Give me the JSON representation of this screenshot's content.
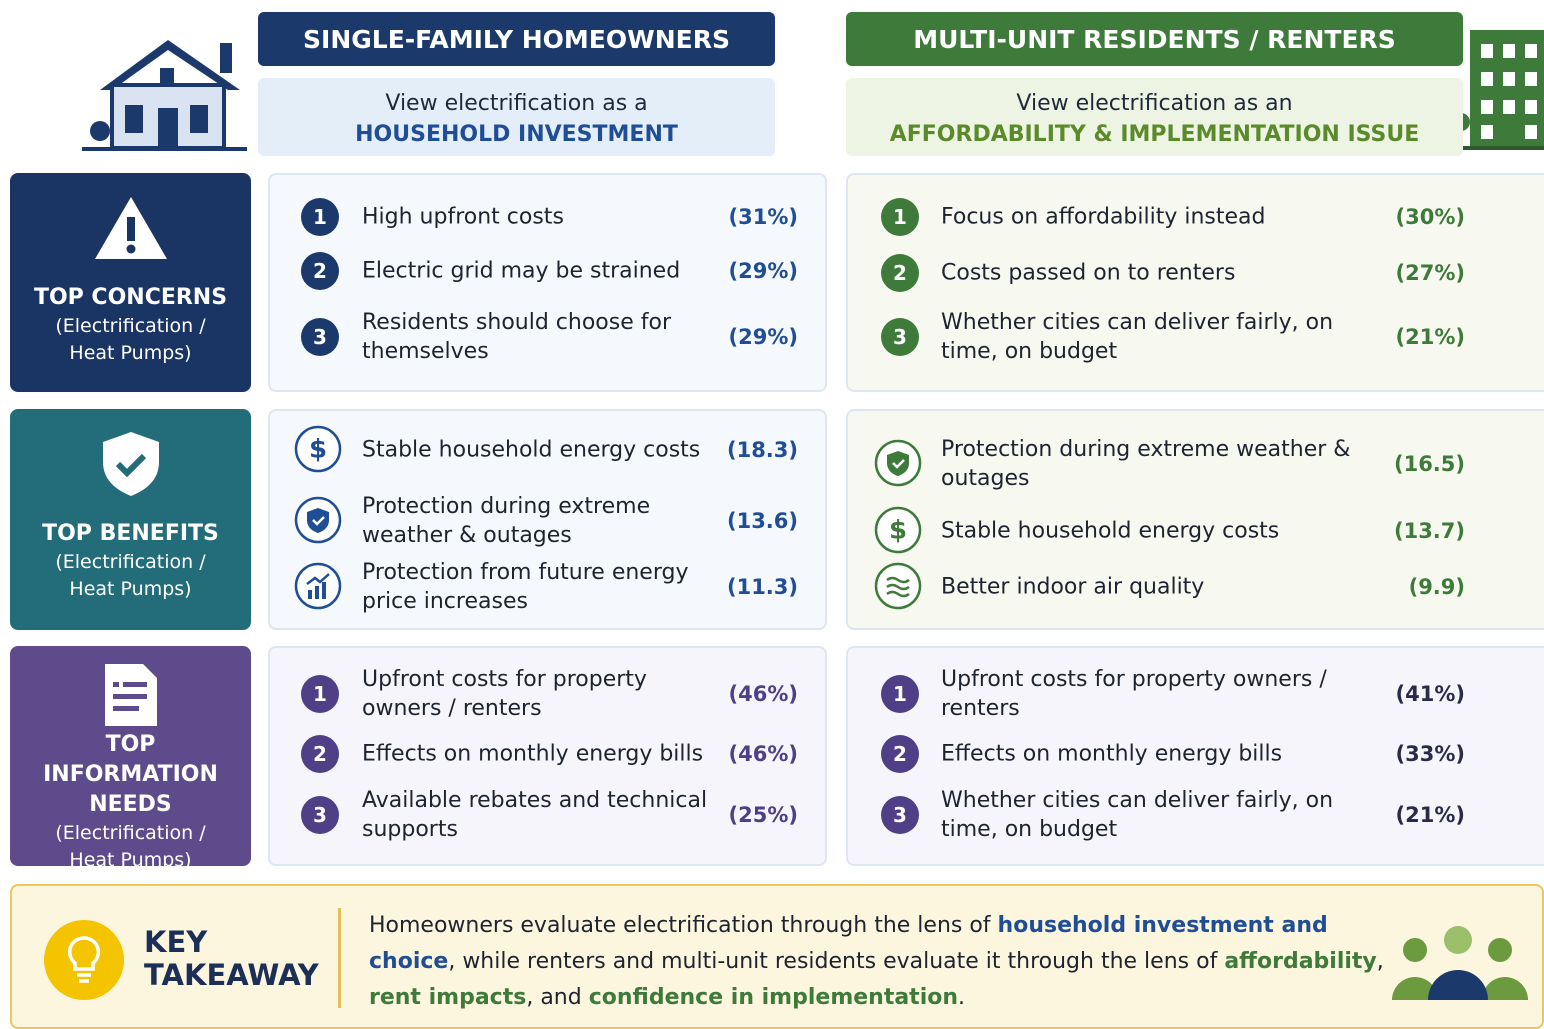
{
  "columns": [
    {
      "title": "SINGLE-FAMILY HOMEOWNERS",
      "view_line": "View electrification as a",
      "view_emphasis": "HOUSEHOLD INVESTMENT"
    },
    {
      "title": "MULTI-UNIT RESIDENTS / RENTERS",
      "view_line": "View electrification as an",
      "view_emphasis": "AFFORDABILITY & IMPLEMENTATION ISSUE"
    }
  ],
  "sections": [
    {
      "title": "TOP CONCERNS",
      "subtitle": "(Electrification / Heat Pumps)",
      "columns": [
        {
          "items": [
            {
              "marker": "1",
              "text": "High upfront costs",
              "value": "(31%)"
            },
            {
              "marker": "2",
              "text": "Electric grid may be strained",
              "value": "(29%)"
            },
            {
              "marker": "3",
              "text": "Residents should choose for themselves",
              "value": "(29%)"
            }
          ]
        },
        {
          "items": [
            {
              "marker": "1",
              "text": "Focus on affordability instead",
              "value": "(30%)"
            },
            {
              "marker": "2",
              "text": "Costs passed on to renters",
              "value": "(27%)"
            },
            {
              "marker": "3",
              "text": "Whether cities can deliver fairly, on time, on budget",
              "value": "(21%)"
            }
          ]
        }
      ]
    },
    {
      "title": "TOP BENEFITS",
      "subtitle": "(Electrification / Heat Pumps)",
      "columns": [
        {
          "items": [
            {
              "text": "Stable household energy costs",
              "value": "(18.3)"
            },
            {
              "text": "Protection during extreme weather & outages",
              "value": "(13.6)"
            },
            {
              "text": "Protection from future energy price increases",
              "value": "(11.3)"
            }
          ]
        },
        {
          "items": [
            {
              "text": "Protection during extreme weather & outages",
              "value": "(16.5)"
            },
            {
              "text": "Stable household energy costs",
              "value": "(13.7)"
            },
            {
              "text": "Better indoor air quality",
              "value": "(9.9)"
            }
          ]
        }
      ]
    },
    {
      "title": "TOP INFORMATION NEEDS",
      "subtitle": "(Electrification / Heat Pumps)",
      "columns": [
        {
          "items": [
            {
              "marker": "1",
              "text": "Upfront costs for property owners / renters",
              "value": "(46%)"
            },
            {
              "marker": "2",
              "text": "Effects on monthly energy bills",
              "value": "(46%)"
            },
            {
              "marker": "3",
              "text": "Available rebates and technical supports",
              "value": "(25%)"
            }
          ]
        },
        {
          "items": [
            {
              "marker": "1",
              "text": "Upfront costs for property owners / renters",
              "value": "(41%)"
            },
            {
              "marker": "2",
              "text": "Effects on monthly energy bills",
              "value": "(33%)"
            },
            {
              "marker": "3",
              "text": "Whether cities can deliver fairly, on time, on budget",
              "value": "(21%)"
            }
          ]
        }
      ]
    }
  ],
  "takeaway": {
    "title": "KEY TAKEAWAY",
    "segments": [
      {
        "text": "Homeowners evaluate electrification through the lens of "
      },
      {
        "text": "household investment and choice",
        "color": "#1f4e96"
      },
      {
        "text": ", while renters and multi-unit residents evaluate it through the lens of "
      },
      {
        "text": "affordability",
        "color": "#3e7b3a"
      },
      {
        "text": ", "
      },
      {
        "text": "rent impacts",
        "color": "#3e7b3a"
      },
      {
        "text": ", and "
      },
      {
        "text": "confidence in implementation",
        "color": "#3e7b3a"
      },
      {
        "text": "."
      }
    ]
  }
}
